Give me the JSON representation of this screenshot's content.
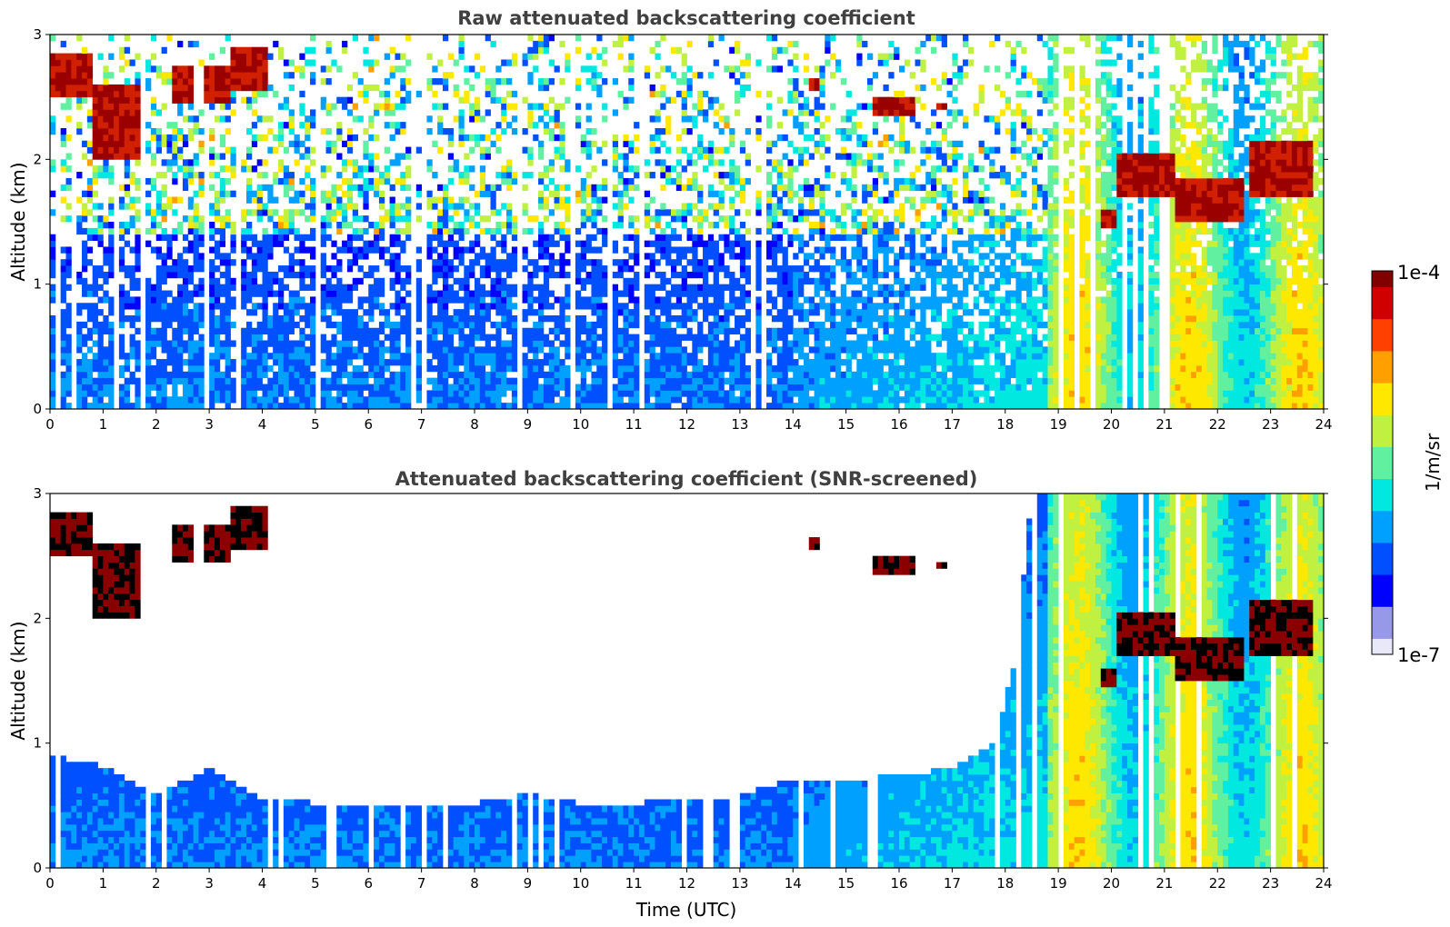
{
  "chart_data": [
    {
      "type": "heatmap",
      "title": "Raw attenuated backscattering coefficient",
      "xlabel": "",
      "ylabel": "Altitude (km)",
      "xlim": [
        0,
        24
      ],
      "ylim": [
        0,
        3
      ],
      "xticks": [
        "0",
        "1",
        "2",
        "3",
        "4",
        "5",
        "6",
        "7",
        "8",
        "9",
        "10",
        "11",
        "12",
        "13",
        "14",
        "15",
        "16",
        "17",
        "18",
        "19",
        "20",
        "21",
        "22",
        "23",
        "24"
      ],
      "yticks": [
        "0",
        "1",
        "2",
        "3"
      ],
      "cloud_layers": [
        {
          "t": [
            0.0,
            0.8
          ],
          "alt": [
            2.5,
            2.85
          ]
        },
        {
          "t": [
            0.8,
            1.7
          ],
          "alt": [
            2.0,
            2.6
          ]
        },
        {
          "t": [
            2.3,
            2.7
          ],
          "alt": [
            2.45,
            2.75
          ]
        },
        {
          "t": [
            2.9,
            3.4
          ],
          "alt": [
            2.45,
            2.75
          ]
        },
        {
          "t": [
            3.4,
            4.1
          ],
          "alt": [
            2.55,
            2.9
          ]
        },
        {
          "t": [
            14.3,
            14.5
          ],
          "alt": [
            2.55,
            2.65
          ]
        },
        {
          "t": [
            15.5,
            16.3
          ],
          "alt": [
            2.35,
            2.5
          ]
        },
        {
          "t": [
            16.7,
            16.85
          ],
          "alt": [
            2.38,
            2.45
          ]
        },
        {
          "t": [
            19.8,
            20.1
          ],
          "alt": [
            1.45,
            1.6
          ]
        },
        {
          "t": [
            20.1,
            21.2
          ],
          "alt": [
            1.7,
            2.05
          ]
        },
        {
          "t": [
            21.2,
            22.5
          ],
          "alt": [
            1.5,
            1.85
          ]
        },
        {
          "t": [
            22.6,
            23.8
          ],
          "alt": [
            1.7,
            2.15
          ]
        }
      ]
    },
    {
      "type": "heatmap",
      "title": "Attenuated backscattering coefficient (SNR-screened)",
      "xlabel": "Time (UTC)",
      "ylabel": "Altitude (km)",
      "xlim": [
        0,
        24
      ],
      "ylim": [
        0,
        3
      ],
      "xticks": [
        "0",
        "1",
        "2",
        "3",
        "4",
        "5",
        "6",
        "7",
        "8",
        "9",
        "10",
        "11",
        "12",
        "13",
        "14",
        "15",
        "16",
        "17",
        "18",
        "19",
        "20",
        "21",
        "22",
        "23",
        "24"
      ],
      "yticks": [
        "0",
        "1",
        "2",
        "3"
      ],
      "signal_top_km": [
        [
          0,
          0.9
        ],
        [
          1,
          0.82
        ],
        [
          2,
          0.58
        ],
        [
          3,
          0.8
        ],
        [
          4,
          0.56
        ],
        [
          5,
          0.52
        ],
        [
          6,
          0.48
        ],
        [
          7,
          0.5
        ],
        [
          8,
          0.52
        ],
        [
          9,
          0.6
        ],
        [
          10,
          0.52
        ],
        [
          11,
          0.52
        ],
        [
          12,
          0.55
        ],
        [
          13,
          0.58
        ],
        [
          14,
          0.72
        ],
        [
          15,
          0.72
        ],
        [
          16,
          0.73
        ],
        [
          17,
          0.8
        ],
        [
          17.8,
          1.0
        ],
        [
          18.2,
          1.7
        ],
        [
          18.5,
          3.0
        ],
        [
          24,
          3.0
        ]
      ]
    }
  ],
  "colorbar": {
    "label": "1/m/sr",
    "max_label": "1e-4",
    "min_label": "1e-7",
    "colors": [
      "#e8e8f8",
      "#9898e8",
      "#0000ff",
      "#0050ff",
      "#00a0ff",
      "#00e8e0",
      "#60f0a0",
      "#c0f040",
      "#ffe800",
      "#ffa000",
      "#ff4000",
      "#d00000",
      "#800000"
    ]
  }
}
